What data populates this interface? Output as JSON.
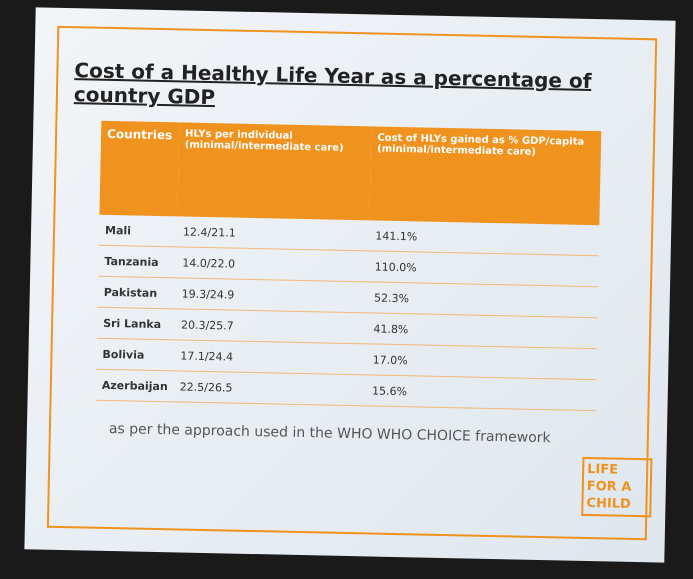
{
  "slide": {
    "title": "Cost of a Healthy Life Year as a percentage of country GDP",
    "table": {
      "header": [
        "Countries",
        "HLYs per individual (minimal/intermediate care)",
        "Cost of HLYs gained as % GDP/capita (minimal/intermediate care)"
      ],
      "rows": [
        [
          "Mali",
          "12.4/21.1",
          "141.1%"
        ],
        [
          "Tanzania",
          "14.0/22.0",
          "110.0%"
        ],
        [
          "Pakistan",
          "19.3/24.9",
          "52.3%"
        ],
        [
          "Sri Lanka",
          "20.3/25.7",
          "41.8%"
        ],
        [
          "Bolivia",
          "17.1/24.4",
          "17.0%"
        ],
        [
          "Azerbaijan",
          "22.5/26.5",
          "15.6%"
        ]
      ]
    },
    "footnote": "as per the approach used in the WHO WHO CHOICE framework",
    "logo": [
      "LIFE",
      "FOR A",
      "CHILD"
    ]
  }
}
